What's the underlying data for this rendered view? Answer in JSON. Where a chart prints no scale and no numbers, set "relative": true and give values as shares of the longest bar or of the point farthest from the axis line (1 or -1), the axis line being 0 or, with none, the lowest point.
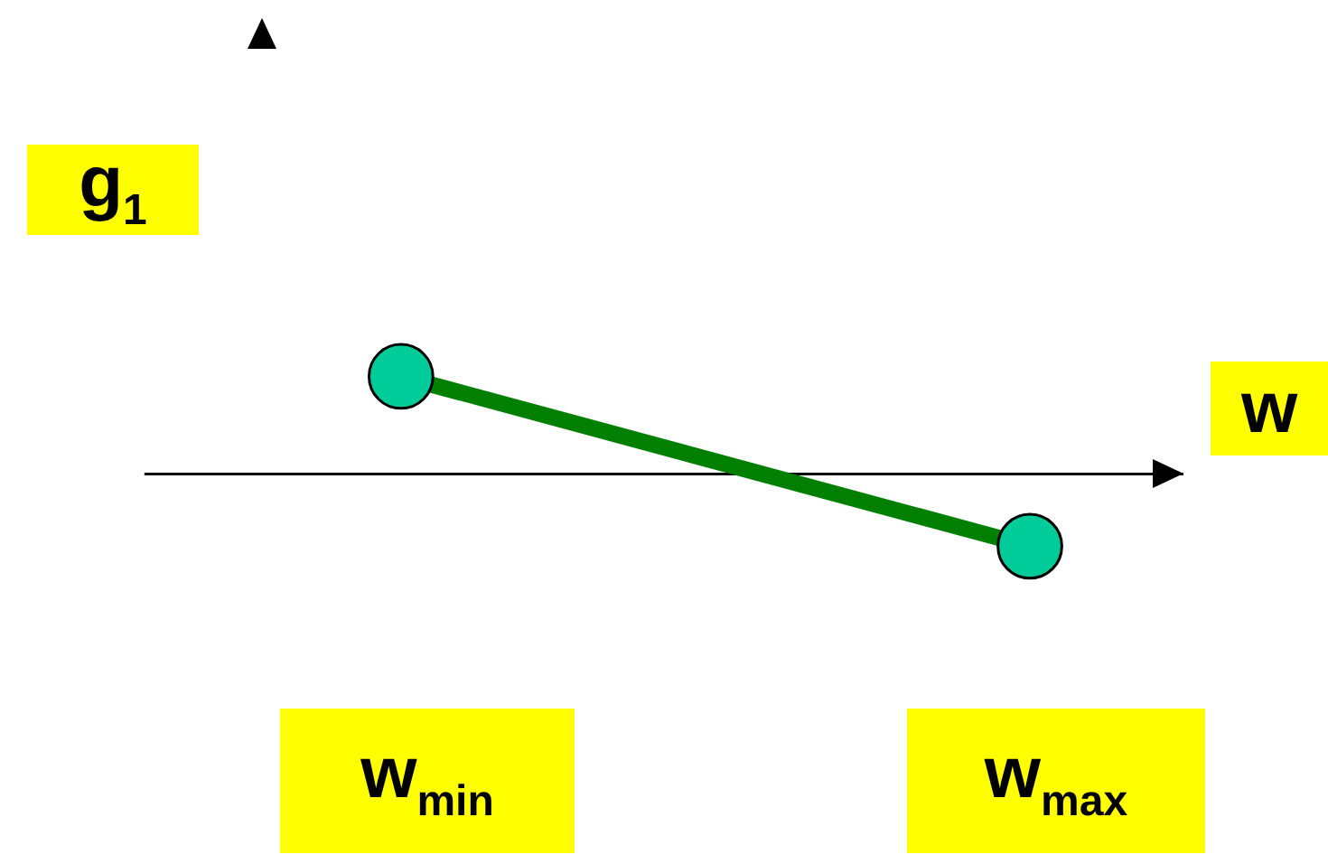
{
  "chart_data": {
    "type": "line",
    "relative": true,
    "xlabel": "w",
    "ylabel": "g$_{1}$",
    "categories": [
      "w$_{min}$",
      "w$_{max}$"
    ],
    "series": [
      {
        "color": "#007f00",
        "values": [
          1,
          -0.74
        ]
      }
    ],
    "marker": "circle",
    "line_style": "solid"
  }
}
